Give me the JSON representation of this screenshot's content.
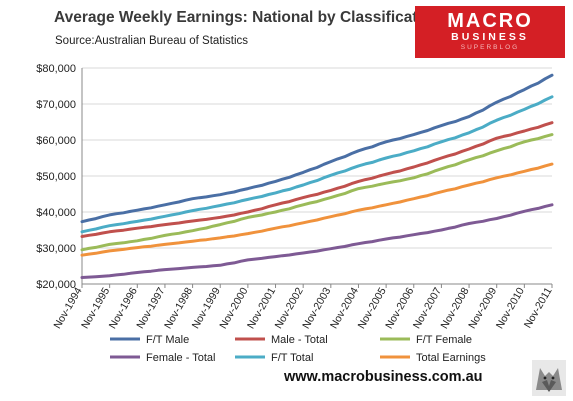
{
  "title": "Average Weekly Earnings: National by Classification",
  "source": "Source:Australian Bureau of Statistics",
  "logo": {
    "line1": "MACRO",
    "line2": "BUSINESS",
    "line3": "SUPERBLOG"
  },
  "footer_url": "www.macrobusiness.com.au",
  "colors": {
    "ft_male": "#4a6fa5",
    "male_total": "#c0504d",
    "ft_female": "#9bbb59",
    "female_total": "#7e5a94",
    "ft_total": "#4bacc6",
    "total_earnings": "#f0923c"
  },
  "chart_data": {
    "type": "line",
    "title": "Average Weekly Earnings: National by Classification",
    "xlabel": "",
    "ylabel": "",
    "ylim": [
      20000,
      80000
    ],
    "y_ticks": [
      "$20,000",
      "$30,000",
      "$40,000",
      "$50,000",
      "$60,000",
      "$70,000",
      "$80,000"
    ],
    "categories": [
      "Nov-1994",
      "Nov-1995",
      "Nov-1996",
      "Nov-1997",
      "Nov-1998",
      "Nov-1999",
      "Nov-2000",
      "Nov-2001",
      "Nov-2002",
      "Nov-2003",
      "Nov-2004",
      "Nov-2005",
      "Nov-2006",
      "Nov-2007",
      "Nov-2008",
      "Nov-2009",
      "Nov-2010",
      "Nov-2011"
    ],
    "grid": true,
    "legend_position": "bottom",
    "series": [
      {
        "name": "F/T Male",
        "color_key": "ft_male",
        "values": [
          37300,
          39200,
          40500,
          42000,
          43700,
          44800,
          46500,
          48500,
          51000,
          54000,
          57000,
          59500,
          61500,
          64000,
          66500,
          70500,
          74000,
          78000
        ]
      },
      {
        "name": "Male - Total",
        "color_key": "male_total",
        "values": [
          33200,
          34500,
          35500,
          36500,
          37500,
          38500,
          40000,
          42000,
          44000,
          46000,
          48500,
          50500,
          52500,
          55000,
          57500,
          60500,
          62500,
          64800
        ]
      },
      {
        "name": "F/T Female",
        "color_key": "ft_female",
        "values": [
          29500,
          31000,
          32000,
          33500,
          34800,
          36500,
          38500,
          40000,
          42000,
          44000,
          46500,
          48000,
          49500,
          52000,
          54500,
          57000,
          59500,
          61500
        ]
      },
      {
        "name": "Female - Total",
        "color_key": "female_total",
        "values": [
          21800,
          22300,
          23200,
          24000,
          24600,
          25200,
          26700,
          27600,
          28600,
          29800,
          31200,
          32500,
          33700,
          35000,
          36800,
          38200,
          40200,
          42000
        ]
      },
      {
        "name": "F/T Total",
        "color_key": "ft_total",
        "values": [
          34500,
          36200,
          37400,
          38800,
          40400,
          41800,
          43500,
          45300,
          47500,
          50200,
          52800,
          55000,
          57000,
          59500,
          62000,
          65500,
          68500,
          72000
        ]
      },
      {
        "name": "Total Earnings",
        "color_key": "total_earnings",
        "values": [
          28000,
          29200,
          30100,
          31000,
          31900,
          32800,
          34000,
          35500,
          37000,
          38700,
          40500,
          42000,
          43700,
          45600,
          47500,
          49500,
          51300,
          53300
        ]
      }
    ]
  }
}
